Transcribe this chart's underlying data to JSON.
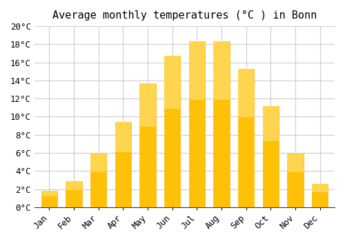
{
  "months": [
    "Jan",
    "Feb",
    "Mar",
    "Apr",
    "May",
    "Jun",
    "Jul",
    "Aug",
    "Sep",
    "Oct",
    "Nov",
    "Dec"
  ],
  "temps": [
    1.8,
    2.9,
    5.9,
    9.4,
    13.7,
    16.7,
    18.3,
    18.3,
    15.3,
    11.2,
    5.9,
    2.6
  ],
  "bar_color_main": "#FFC107",
  "bar_color_edge": "#FFB300",
  "bar_gradient_top": "#FFD54F",
  "title": "Average monthly temperatures (°C ) in Bonn",
  "ylim": [
    0,
    20
  ],
  "ytick_values": [
    0,
    2,
    4,
    6,
    8,
    10,
    12,
    14,
    16,
    18,
    20
  ],
  "ytick_labels": [
    "0°C",
    "2°C",
    "4°C",
    "6°C",
    "8°C",
    "10°C",
    "12°C",
    "14°C",
    "16°C",
    "18°C",
    "20°C"
  ],
  "background_color": "#FFFFFF",
  "grid_color": "#CCCCCC",
  "title_fontsize": 11,
  "tick_fontsize": 9,
  "font_family": "monospace"
}
